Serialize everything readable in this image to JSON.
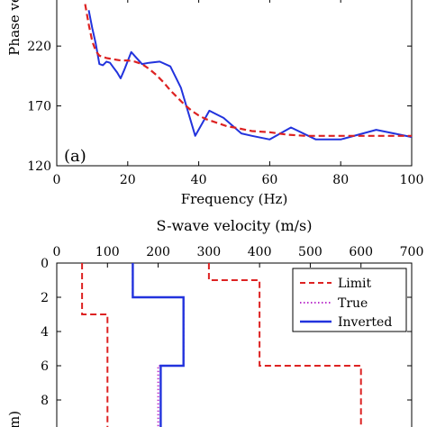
{
  "chart_data": [
    {
      "type": "line",
      "panel_label": "(a)",
      "xlabel": "Frequency (Hz)",
      "ylabel": "Phase ve",
      "xlim": [
        0,
        100
      ],
      "ylim": [
        120,
        260
      ],
      "xticks": [
        0,
        20,
        40,
        60,
        80,
        100
      ],
      "yticks": [
        120,
        170,
        220
      ],
      "grid": false,
      "series": [
        {
          "role": "observed",
          "color": "#2233dd",
          "style": "solid",
          "x": [
            9,
            10,
            11,
            12,
            13,
            14,
            15,
            16,
            17,
            18,
            19,
            21,
            24,
            26,
            29,
            32,
            35,
            39,
            43,
            47,
            52,
            55,
            60,
            66,
            73,
            80,
            90,
            100
          ],
          "y": [
            250,
            235,
            222,
            205,
            204,
            207,
            206,
            202,
            198,
            193,
            200,
            215,
            205,
            206,
            207,
            203,
            185,
            145,
            166,
            160,
            147,
            145,
            142,
            152,
            142,
            142,
            150,
            144
          ]
        },
        {
          "role": "theoretical",
          "color": "#dd2222",
          "style": "dashed",
          "x": [
            8,
            9,
            10,
            11,
            12,
            14,
            16,
            18,
            20,
            22,
            24,
            26,
            28,
            30,
            32,
            34,
            36,
            38,
            40,
            42,
            44,
            46,
            48,
            50,
            55,
            60,
            65,
            70,
            80,
            90,
            100
          ],
          "y": [
            255,
            238,
            224,
            216,
            212,
            210,
            209,
            208,
            208,
            207,
            205,
            201,
            196,
            190,
            183,
            177,
            171,
            166,
            162,
            159,
            157,
            155,
            153,
            152,
            149,
            148,
            146,
            145,
            145,
            145,
            145
          ]
        }
      ]
    },
    {
      "type": "line",
      "title": "S-wave velocity (m/s)",
      "ylabel": "m)",
      "xlim": [
        0,
        700
      ],
      "ylim": [
        0,
        10.5
      ],
      "y_inverted": true,
      "x_axis_position": "top",
      "xticks": [
        0,
        100,
        200,
        300,
        400,
        500,
        600,
        700
      ],
      "yticks": [
        0,
        2,
        4,
        6,
        8
      ],
      "grid": false,
      "legend": {
        "placement": "top-right",
        "entries": [
          "Limit",
          "True",
          "Inverted"
        ]
      },
      "series": [
        {
          "name": "Limit",
          "color": "#dd2222",
          "style": "dashed",
          "x": [
            50,
            50,
            100,
            100
          ],
          "y": [
            0,
            3,
            3,
            10.5
          ]
        },
        {
          "name": "Limit",
          "color": "#dd2222",
          "style": "dashed",
          "x": [
            300,
            300,
            400,
            400,
            600,
            600
          ],
          "y": [
            0,
            1,
            1,
            6,
            6,
            10.5
          ]
        },
        {
          "name": "True",
          "color": "#bb33cc",
          "style": "dotted",
          "x": [
            150,
            150,
            250,
            250,
            200,
            200
          ],
          "y": [
            0,
            2,
            2,
            6,
            6,
            10.5
          ]
        },
        {
          "name": "Inverted",
          "color": "#2233dd",
          "style": "solid",
          "x": [
            150,
            150,
            250,
            250,
            205,
            205
          ],
          "y": [
            0,
            2,
            2,
            6,
            6,
            10.5
          ]
        }
      ]
    }
  ]
}
